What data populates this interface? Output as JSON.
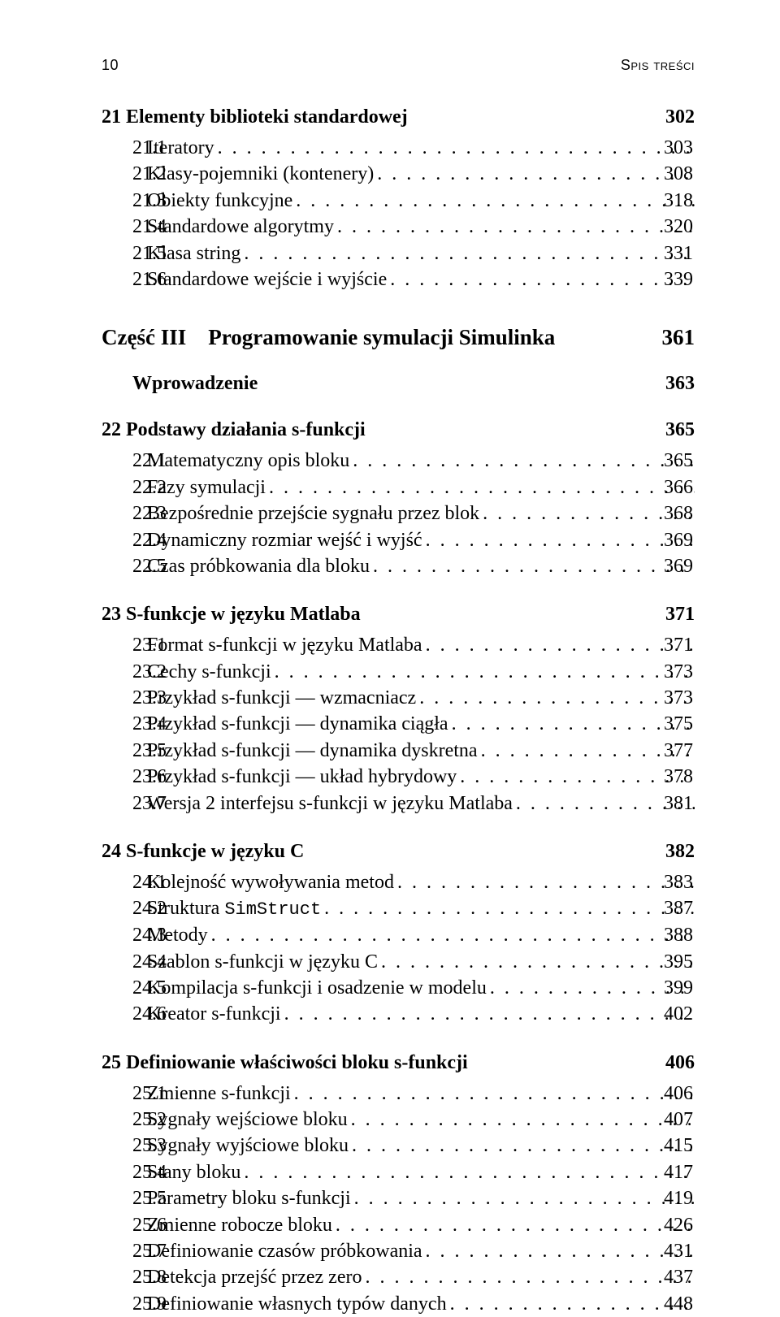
{
  "header": {
    "page_number": "10",
    "running_title": "Spis treści"
  },
  "ch21": {
    "num": "21",
    "title": "Elementy biblioteki standardowej",
    "page": "302",
    "sections": [
      {
        "num": "21.1",
        "label": "Iteratory",
        "page": "303"
      },
      {
        "num": "21.2",
        "label": "Klasy-pojemniki (kontenery)",
        "page": "308"
      },
      {
        "num": "21.3",
        "label": "Obiekty funkcyjne",
        "page": "318"
      },
      {
        "num": "21.4",
        "label": "Standardowe algorytmy",
        "page": "320"
      },
      {
        "num": "21.5",
        "label": "Klasa string",
        "page": "331"
      },
      {
        "num": "21.6",
        "label": "Standardowe wejście i wyjście",
        "page": "339"
      }
    ]
  },
  "part3": {
    "label": "Część III",
    "title": "Programowanie symulacji Simulinka",
    "page": "361"
  },
  "intro": {
    "label": "Wprowadzenie",
    "page": "363"
  },
  "ch22": {
    "num": "22",
    "title": "Podstawy działania s-funkcji",
    "page": "365",
    "sections": [
      {
        "num": "22.1",
        "label": "Matematyczny opis bloku",
        "page": "365"
      },
      {
        "num": "22.2",
        "label": "Fazy symulacji",
        "page": "366"
      },
      {
        "num": "22.3",
        "label": "Bezpośrednie przejście sygnału przez blok",
        "page": "368"
      },
      {
        "num": "22.4",
        "label": "Dynamiczny rozmiar wejść i wyjść",
        "page": "369"
      },
      {
        "num": "22.5",
        "label": "Czas próbkowania dla bloku",
        "page": "369"
      }
    ]
  },
  "ch23": {
    "num": "23",
    "title": "S-funkcje w języku Matlaba",
    "page": "371",
    "sections": [
      {
        "num": "23.1",
        "label": "Format s-funkcji w języku Matlaba",
        "page": "371"
      },
      {
        "num": "23.2",
        "label": "Cechy s-funkcji",
        "page": "373"
      },
      {
        "num": "23.3",
        "label": "Przykład s-funkcji — wzmacniacz",
        "page": "373"
      },
      {
        "num": "23.4",
        "label": "Przykład s-funkcji — dynamika ciągła",
        "page": "375"
      },
      {
        "num": "23.5",
        "label": "Przykład s-funkcji — dynamika dyskretna",
        "page": "377"
      },
      {
        "num": "23.6",
        "label": "Przykład s-funkcji — układ hybrydowy",
        "page": "378"
      },
      {
        "num": "23.7",
        "label": "Wersja 2 interfejsu s-funkcji w języku Matlaba",
        "page": "381"
      }
    ]
  },
  "ch24": {
    "num": "24",
    "title": "S-funkcje w języku C",
    "page": "382",
    "sections": [
      {
        "num": "24.1",
        "label": "Kolejność wywoływania metod",
        "page": "383"
      },
      {
        "num": "24.2",
        "label_pre": "Struktura ",
        "label_mono": "SimStruct",
        "page": "387"
      },
      {
        "num": "24.3",
        "label": "Metody",
        "page": "388"
      },
      {
        "num": "24.4",
        "label": "Szablon s-funkcji w języku C",
        "page": "395"
      },
      {
        "num": "24.5",
        "label": "Kompilacja s-funkcji i osadzenie w modelu",
        "page": "399"
      },
      {
        "num": "24.6",
        "label": "Kreator s-funkcji",
        "page": "402"
      }
    ]
  },
  "ch25": {
    "num": "25",
    "title": "Definiowanie właściwości bloku s-funkcji",
    "page": "406",
    "sections": [
      {
        "num": "25.1",
        "label": "Zmienne s-funkcji",
        "page": "406"
      },
      {
        "num": "25.2",
        "label": "Sygnały wejściowe bloku",
        "page": "407"
      },
      {
        "num": "25.3",
        "label": "Sygnały wyjściowe bloku",
        "page": "415"
      },
      {
        "num": "25.4",
        "label": "Stany bloku",
        "page": "417"
      },
      {
        "num": "25.5",
        "label": "Parametry bloku s-funkcji",
        "page": "419"
      },
      {
        "num": "25.6",
        "label": "Zmienne robocze bloku",
        "page": "426"
      },
      {
        "num": "25.7",
        "label": "Definiowanie czasów próbkowania",
        "page": "431"
      },
      {
        "num": "25.8",
        "label": "Detekcja przejść przez zero",
        "page": "437"
      },
      {
        "num": "25.9",
        "label": "Definiowanie własnych typów danych",
        "page": "448"
      }
    ]
  },
  "dots": ". . . . . . . . . . . . . . . . . . . . . . . . . . . . . . . . . . . . . . . . . . . . . . . . . . . . . . . . . . . . . . . ."
}
